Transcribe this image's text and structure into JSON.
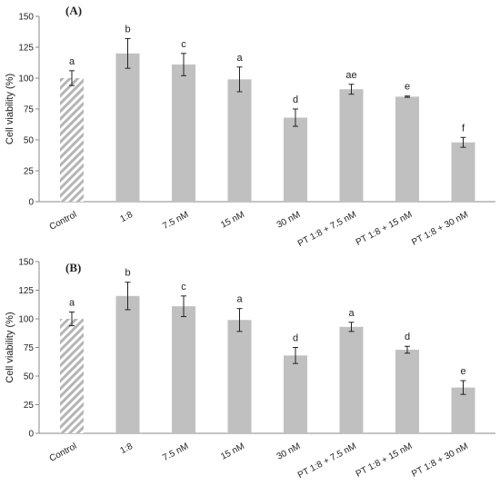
{
  "chart_data": [
    {
      "type": "bar",
      "panel_label": "(A)",
      "ylabel": "Cell viability (%)",
      "xlabel": "",
      "ylim": [
        0,
        150
      ],
      "yticks": [
        0,
        25,
        50,
        75,
        100,
        125,
        150
      ],
      "categories": [
        "Control",
        "1:8",
        "7.5 nM",
        "15 nM",
        "30 nM",
        "PT 1:8 + 7.5 nM",
        "PT 1:8 + 15 nM",
        "PT 1:8 + 30 nM"
      ],
      "values": [
        100,
        120,
        111,
        99,
        68,
        91,
        85,
        48
      ],
      "errors": [
        6,
        12,
        9,
        10,
        7,
        4,
        0.5,
        4
      ],
      "significance": [
        "a",
        "b",
        "c",
        "a",
        "d",
        "ae",
        "e",
        "f"
      ],
      "grid": false,
      "colors": {
        "bar": "#c0c0c0",
        "control_hatch": "#b5b5b5",
        "error": "#222222"
      }
    },
    {
      "type": "bar",
      "panel_label": "(B)",
      "ylabel": "Cell viability (%)",
      "xlabel": "",
      "ylim": [
        0,
        150
      ],
      "yticks": [
        0,
        25,
        50,
        75,
        100,
        125,
        150
      ],
      "categories": [
        "Control",
        "1:8",
        "7.5 nM",
        "15 nM",
        "30 nM",
        "PT 1:8 + 7.5 nM",
        "PT 1:8 + 15 nM",
        "PT 1:8 + 30 nM"
      ],
      "values": [
        100,
        120,
        111,
        99,
        68,
        93,
        73,
        40
      ],
      "errors": [
        6,
        12,
        9,
        10,
        7,
        4,
        3,
        6
      ],
      "significance": [
        "a",
        "b",
        "c",
        "a",
        "d",
        "a",
        "d",
        "e"
      ],
      "grid": false,
      "colors": {
        "bar": "#c0c0c0",
        "control_hatch": "#b5b5b5",
        "error": "#222222"
      }
    }
  ]
}
